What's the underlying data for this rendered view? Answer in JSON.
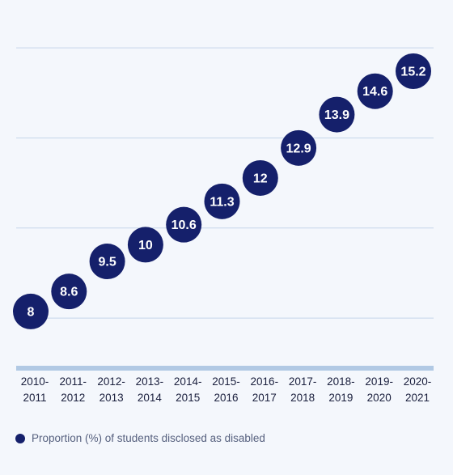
{
  "colors": {
    "background": "#f4f7fc",
    "marker": "#15206b",
    "marker_text": "#ffffff",
    "gridline": "#c5d6ea",
    "baseline": "#b1c9e4",
    "tick_text": "#1a1f3d",
    "legend_text": "#56607e"
  },
  "chart_data": {
    "type": "scatter",
    "categories": [
      "2010-2011",
      "2011-2012",
      "2012-2013",
      "2013-2014",
      "2014-2015",
      "2015-2016",
      "2016-2017",
      "2017-2018",
      "2018-2019",
      "2019-2020",
      "2020-2021"
    ],
    "tick_labels": [
      [
        "2010-",
        "2011"
      ],
      [
        "2011-",
        "2012"
      ],
      [
        "2012-",
        "2013"
      ],
      [
        "2013-",
        "2014"
      ],
      [
        "2014-",
        "2015"
      ],
      [
        "2015-",
        "2016"
      ],
      [
        "2016-",
        "2017"
      ],
      [
        "2017-",
        "2018"
      ],
      [
        "2018-",
        "2019"
      ],
      [
        "2019-",
        "2020"
      ],
      [
        "2020-",
        "2021"
      ]
    ],
    "series": [
      {
        "name": "Proportion (%) of students disclosed as disabled",
        "values": [
          8,
          8.6,
          9.5,
          10,
          10.6,
          11.3,
          12,
          12.9,
          13.9,
          14.6,
          15.2
        ],
        "labels": [
          "8",
          "8.6",
          "9.5",
          "10",
          "10.6",
          "11.3",
          "12",
          "12.9",
          "13.9",
          "14.6",
          "15.2"
        ]
      }
    ],
    "title": "",
    "xlabel": "",
    "ylabel": "",
    "ylim": [
      6.3,
      16
    ],
    "gridlines": [
      7.8,
      10.5,
      13.2,
      15.9
    ],
    "grid": true,
    "data_labels": true,
    "legend_position": "bottom-left"
  },
  "legend": {
    "items": [
      {
        "label": "Proportion (%) of students disclosed as disabled",
        "color": "#15206b"
      }
    ]
  }
}
